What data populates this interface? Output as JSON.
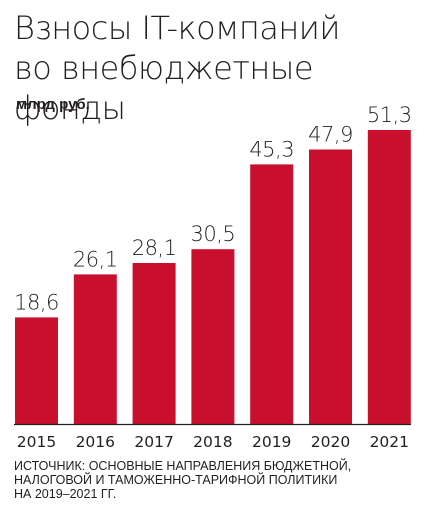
{
  "header": {
    "title_line1": "Взносы IT-компаний",
    "title_line2": "во внебюджетные фонды",
    "unit": "млрд руб."
  },
  "footer": {
    "source_line1": "ИСТОЧНИК: ОСНОВНЫЕ НАПРАВЛЕНИЯ БЮДЖЕТНОЙ,",
    "source_line2": "НАЛОГОВОЙ И ТАМОЖЕННО-ТАРИФНОЙ ПОЛИТИКИ",
    "source_line3": "НА 2019–2021 ГГ."
  },
  "colors": {
    "bar": "#c8102e",
    "text": "#231f20",
    "baseline": "#231f20"
  },
  "chart_data": {
    "type": "bar",
    "title": "Взносы IT-компаний во внебюджетные фонды",
    "ylabel": "млрд руб.",
    "xlabel": "",
    "categories": [
      "2015",
      "2016",
      "2017",
      "2018",
      "2019",
      "2020",
      "2021"
    ],
    "values": [
      18.6,
      26.1,
      28.1,
      30.5,
      45.3,
      47.9,
      51.3
    ],
    "value_labels": [
      "18,6",
      "26,1",
      "28,1",
      "30,5",
      "45,3",
      "47,9",
      "51,3"
    ],
    "ylim": [
      0,
      51.3
    ],
    "grid": false,
    "legend": "none"
  }
}
